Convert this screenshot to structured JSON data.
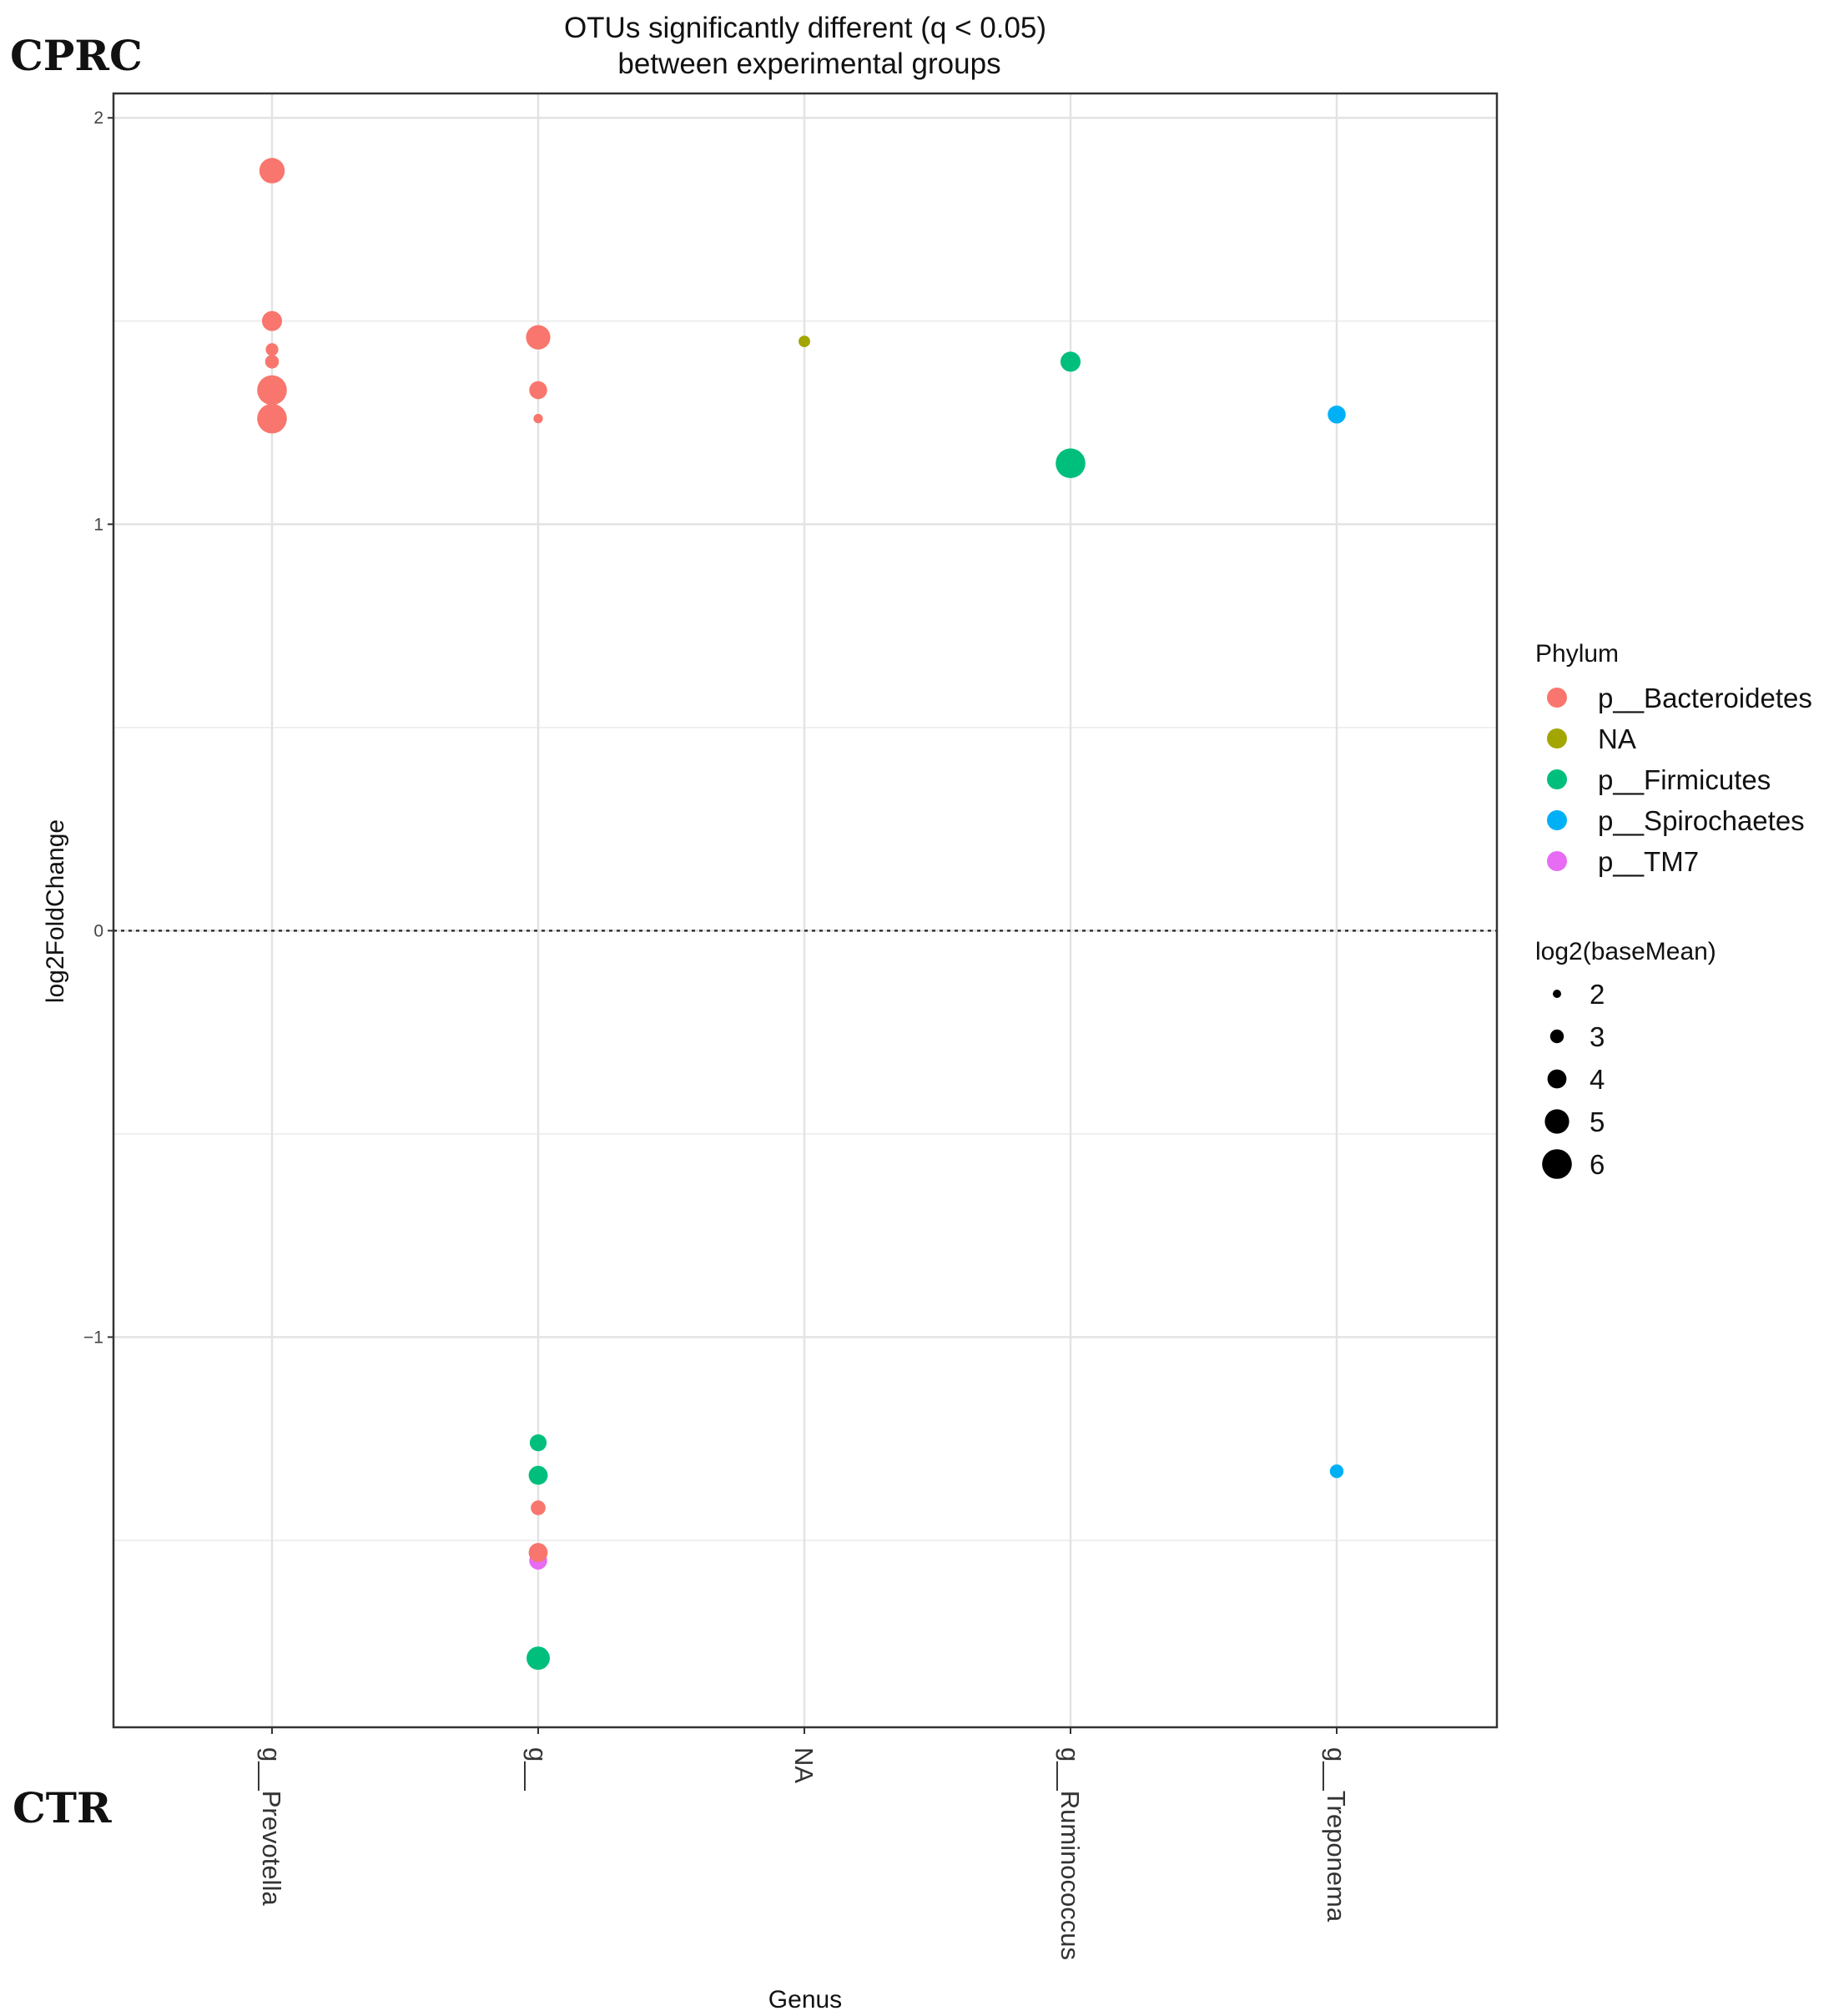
{
  "chart_data": {
    "type": "scatter",
    "title_lines": [
      "OTUs significantly different (q < 0.05)",
      "between experimental groups"
    ],
    "corner_labels": {
      "top": "CPRC",
      "bottom": "CTR"
    },
    "xlabel": "Genus",
    "ylabel": "log2FoldChange",
    "categories": [
      "g__Prevotella",
      "g__",
      "NA",
      "g__Ruminococcus",
      "g__Treponema"
    ],
    "ylim": [
      -1.96,
      2.06
    ],
    "y_ticks": [
      2,
      1,
      0,
      -1
    ],
    "y_tick_labels": [
      "2",
      "1",
      "0",
      "−1"
    ],
    "y_minor_gridlines": [
      1.5,
      0.5,
      -0.5,
      -1.5
    ],
    "reference_line": 0,
    "grid": true,
    "legend_color": {
      "title": "Phylum",
      "entries": [
        {
          "label": "p__Bacteroidetes",
          "color": "#F8766D"
        },
        {
          "label": "NA",
          "color": "#A3A500"
        },
        {
          "label": "p__Firmicutes",
          "color": "#00BF7D"
        },
        {
          "label": "p__Spirochaetes",
          "color": "#00B0F6"
        },
        {
          "label": "p__TM7",
          "color": "#E76BF3"
        }
      ]
    },
    "legend_size": {
      "title": "log2(baseMean)",
      "entries": [
        2,
        3,
        4,
        5,
        6
      ],
      "labels": [
        "2",
        "3",
        "4",
        "5",
        "6"
      ]
    },
    "points": [
      {
        "genus": "g__Prevotella",
        "y": 1.87,
        "phylum": "p__Bacteroidetes",
        "size": 5.2
      },
      {
        "genus": "g__Prevotella",
        "y": 1.5,
        "phylum": "p__Bacteroidetes",
        "size": 4.2
      },
      {
        "genus": "g__Prevotella",
        "y": 1.43,
        "phylum": "p__Bacteroidetes",
        "size": 2.8
      },
      {
        "genus": "g__Prevotella",
        "y": 1.4,
        "phylum": "p__Bacteroidetes",
        "size": 3.0
      },
      {
        "genus": "g__Prevotella",
        "y": 1.33,
        "phylum": "p__Bacteroidetes",
        "size": 6.0
      },
      {
        "genus": "g__Prevotella",
        "y": 1.26,
        "phylum": "p__Bacteroidetes",
        "size": 6.0
      },
      {
        "genus": "g__",
        "y": 1.46,
        "phylum": "p__Bacteroidetes",
        "size": 5.0
      },
      {
        "genus": "g__",
        "y": 1.33,
        "phylum": "p__Bacteroidetes",
        "size": 3.8
      },
      {
        "genus": "g__",
        "y": 1.26,
        "phylum": "p__Bacteroidetes",
        "size": 2.2
      },
      {
        "genus": "NA",
        "y": 1.45,
        "phylum": "NA",
        "size": 2.6
      },
      {
        "genus": "g__Ruminococcus",
        "y": 1.4,
        "phylum": "p__Firmicutes",
        "size": 4.2
      },
      {
        "genus": "g__Ruminococcus",
        "y": 1.15,
        "phylum": "p__Firmicutes",
        "size": 6.0
      },
      {
        "genus": "g__Treponema",
        "y": 1.27,
        "phylum": "p__Spirochaetes",
        "size": 3.8
      },
      {
        "genus": "g__",
        "y": -1.26,
        "phylum": "p__Firmicutes",
        "size": 3.6
      },
      {
        "genus": "g__",
        "y": -1.34,
        "phylum": "p__Firmicutes",
        "size": 4.0
      },
      {
        "genus": "g__",
        "y": -1.42,
        "phylum": "p__Bacteroidetes",
        "size": 3.2
      },
      {
        "genus": "g__",
        "y": -1.55,
        "phylum": "p__TM7",
        "size": 3.8
      },
      {
        "genus": "g__",
        "y": -1.53,
        "phylum": "p__Bacteroidetes",
        "size": 4.0
      },
      {
        "genus": "g__",
        "y": -1.79,
        "phylum": "p__Firmicutes",
        "size": 4.8
      },
      {
        "genus": "g__Treponema",
        "y": -1.33,
        "phylum": "p__Spirochaetes",
        "size": 3.0
      }
    ]
  }
}
